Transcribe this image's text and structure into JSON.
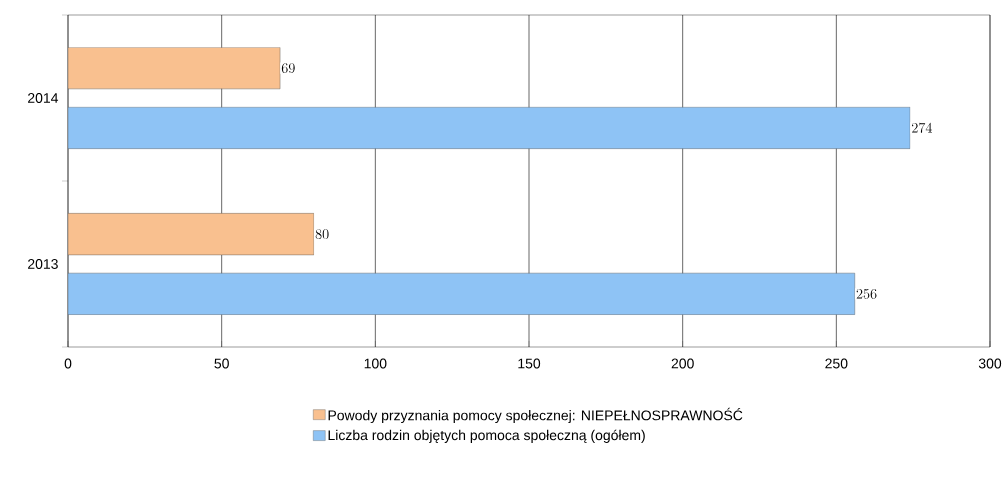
{
  "chart_data": {
    "type": "bar",
    "orientation": "horizontal",
    "categories": [
      "2014",
      "2013"
    ],
    "series": [
      {
        "name": "Powody przyznania pomocy społecznej: NIEPEŁNOSPRAWNOŚĆ",
        "color": "#f9c08f",
        "values": [
          69,
          80
        ]
      },
      {
        "name": "Liczba rodzin objętych pomoca społeczną (ogółem)",
        "color": "#8ec3f5",
        "values": [
          274,
          256
        ]
      }
    ],
    "xlim": [
      0,
      300
    ],
    "xticks": [
      0,
      50,
      100,
      150,
      200,
      250,
      300
    ],
    "grid": "x",
    "legend": "bottom",
    "data_labels": true
  }
}
